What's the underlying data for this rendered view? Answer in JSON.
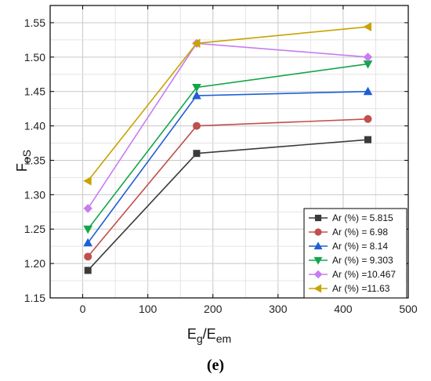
{
  "chart_data": {
    "type": "line",
    "xlabel": {
      "main": "E",
      "sub1": "g",
      "slash": "/E",
      "sub2": "em"
    },
    "ylabel": {
      "main": "F",
      "sub": "oS"
    },
    "xlim": [
      -50,
      500
    ],
    "ylim": [
      1.15,
      1.575
    ],
    "xticks": [
      0,
      100,
      200,
      300,
      400,
      500
    ],
    "yticks": [
      1.15,
      1.2,
      1.25,
      1.3,
      1.35,
      1.4,
      1.45,
      1.5,
      1.55
    ],
    "ytick_labels": [
      "1.15",
      "1.20",
      "1.25",
      "1.30",
      "1.35",
      "1.40",
      "1.45",
      "1.50",
      "1.55"
    ],
    "grid": true,
    "legend_position": "bottom-right",
    "x": [
      8,
      175,
      438
    ],
    "series": [
      {
        "name": "Ar (%) = 5.815",
        "marker": "square",
        "color": "#3a3a3a",
        "values": [
          1.19,
          1.36,
          1.38
        ]
      },
      {
        "name": "Ar (%) = 6.98",
        "marker": "circle",
        "color": "#c0504d",
        "values": [
          1.21,
          1.4,
          1.41
        ]
      },
      {
        "name": "Ar (%) = 8.14",
        "marker": "triangle-up",
        "color": "#1f5fd6",
        "values": [
          1.23,
          1.444,
          1.45
        ]
      },
      {
        "name": "Ar (%) = 9.303",
        "marker": "triangle-down",
        "color": "#15a54a",
        "values": [
          1.25,
          1.456,
          1.49
        ]
      },
      {
        "name": "Ar (%) =10.467",
        "marker": "diamond",
        "color": "#c77cf0",
        "values": [
          1.28,
          1.52,
          1.5
        ]
      },
      {
        "name": "Ar (%) =11.63",
        "marker": "triangle-left",
        "color": "#c8a400",
        "values": [
          1.32,
          1.52,
          1.544
        ]
      }
    ]
  },
  "caption": "(e)"
}
